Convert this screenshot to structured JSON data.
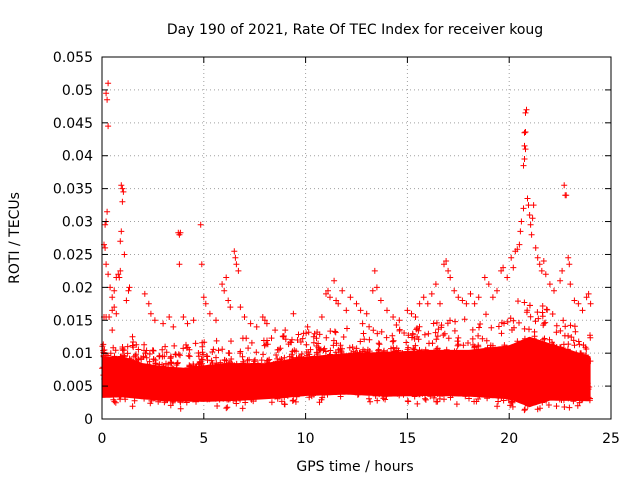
{
  "chart_data": {
    "type": "scatter",
    "title": "Day 190 of 2021, Rate Of TEC Index for receiver koug",
    "xlabel": "GPS time / hours",
    "ylabel": "ROTI / TECUs",
    "xlim": [
      0,
      25
    ],
    "ylim": [
      0,
      0.055
    ],
    "xticks": [
      0,
      5,
      10,
      15,
      20,
      25
    ],
    "xtick_labels": [
      "0",
      "5",
      "10",
      "15",
      "20",
      "25"
    ],
    "yticks": [
      0,
      0.005,
      0.01,
      0.015,
      0.02,
      0.025,
      0.03,
      0.035,
      0.04,
      0.045,
      0.05,
      0.055
    ],
    "ytick_labels": [
      "0",
      "0.005",
      "0.01",
      "0.015",
      "0.02",
      "0.025",
      "0.03",
      "0.035",
      "0.04",
      "0.045",
      "0.05",
      "0.055"
    ],
    "grid": true,
    "marker": "+",
    "color": "#ff0000",
    "series": [
      {
        "name": "ROTI",
        "points": [
          [
            0.2,
            0.0495
          ],
          [
            0.25,
            0.0485
          ],
          [
            0.3,
            0.051
          ],
          [
            0.3,
            0.0445
          ],
          [
            0.15,
            0.0295
          ],
          [
            0.2,
            0.03
          ],
          [
            0.25,
            0.0315
          ],
          [
            0.1,
            0.0265
          ],
          [
            0.15,
            0.026
          ],
          [
            0.2,
            0.0235
          ],
          [
            0.3,
            0.022
          ],
          [
            0.4,
            0.02
          ],
          [
            0.5,
            0.0185
          ],
          [
            0.6,
            0.0195
          ],
          [
            0.7,
            0.0215
          ],
          [
            0.8,
            0.022
          ],
          [
            0.9,
            0.0225
          ],
          [
            0.85,
            0.0215
          ],
          [
            0.95,
            0.0355
          ],
          [
            1.0,
            0.035
          ],
          [
            1.05,
            0.0345
          ],
          [
            1.0,
            0.033
          ],
          [
            0.95,
            0.0285
          ],
          [
            0.9,
            0.027
          ],
          [
            1.1,
            0.025
          ],
          [
            0.5,
            0.0165
          ],
          [
            0.7,
            0.016
          ],
          [
            1.2,
            0.018
          ],
          [
            1.3,
            0.0195
          ],
          [
            1.35,
            0.02
          ],
          [
            0.1,
            0.0155
          ],
          [
            0.2,
            0.0155
          ],
          [
            0.35,
            0.0155
          ],
          [
            0.6,
            0.017
          ],
          [
            2.1,
            0.019
          ],
          [
            2.3,
            0.0175
          ],
          [
            2.4,
            0.016
          ],
          [
            2.6,
            0.015
          ],
          [
            3.0,
            0.0145
          ],
          [
            3.3,
            0.0155
          ],
          [
            3.5,
            0.014
          ],
          [
            3.75,
            0.0283
          ],
          [
            3.8,
            0.028
          ],
          [
            3.85,
            0.0283
          ],
          [
            3.8,
            0.0235
          ],
          [
            4.0,
            0.0155
          ],
          [
            4.2,
            0.0145
          ],
          [
            4.5,
            0.015
          ],
          [
            4.85,
            0.0295
          ],
          [
            4.9,
            0.0235
          ],
          [
            5.0,
            0.0185
          ],
          [
            5.1,
            0.0175
          ],
          [
            5.3,
            0.016
          ],
          [
            5.6,
            0.015
          ],
          [
            5.9,
            0.0205
          ],
          [
            6.0,
            0.0195
          ],
          [
            6.1,
            0.0215
          ],
          [
            6.2,
            0.018
          ],
          [
            6.3,
            0.017
          ],
          [
            6.5,
            0.0255
          ],
          [
            6.55,
            0.0245
          ],
          [
            6.6,
            0.0235
          ],
          [
            6.7,
            0.0225
          ],
          [
            6.8,
            0.017
          ],
          [
            7.0,
            0.0155
          ],
          [
            7.3,
            0.0145
          ],
          [
            7.6,
            0.014
          ],
          [
            7.9,
            0.0155
          ],
          [
            8.0,
            0.015
          ],
          [
            8.1,
            0.0145
          ],
          [
            8.5,
            0.0135
          ],
          [
            8.9,
            0.0125
          ],
          [
            9.4,
            0.016
          ],
          [
            9.6,
            0.012
          ],
          [
            10.1,
            0.014
          ],
          [
            10.4,
            0.0125
          ],
          [
            10.8,
            0.0155
          ],
          [
            11.0,
            0.019
          ],
          [
            11.1,
            0.0195
          ],
          [
            11.2,
            0.0185
          ],
          [
            11.4,
            0.021
          ],
          [
            11.5,
            0.018
          ],
          [
            11.6,
            0.0175
          ],
          [
            11.8,
            0.0195
          ],
          [
            12.0,
            0.0165
          ],
          [
            12.2,
            0.0185
          ],
          [
            12.5,
            0.0175
          ],
          [
            12.7,
            0.0165
          ],
          [
            13.0,
            0.016
          ],
          [
            13.3,
            0.0195
          ],
          [
            13.4,
            0.0225
          ],
          [
            13.5,
            0.02
          ],
          [
            13.7,
            0.018
          ],
          [
            14.0,
            0.0165
          ],
          [
            14.3,
            0.0155
          ],
          [
            14.6,
            0.015
          ],
          [
            15.0,
            0.0165
          ],
          [
            15.2,
            0.016
          ],
          [
            15.4,
            0.0155
          ],
          [
            15.6,
            0.0175
          ],
          [
            15.8,
            0.0185
          ],
          [
            16.0,
            0.0175
          ],
          [
            16.2,
            0.019
          ],
          [
            16.4,
            0.0205
          ],
          [
            16.6,
            0.0175
          ],
          [
            16.8,
            0.0235
          ],
          [
            16.9,
            0.024
          ],
          [
            17.0,
            0.0225
          ],
          [
            17.1,
            0.0215
          ],
          [
            17.3,
            0.0195
          ],
          [
            17.5,
            0.0185
          ],
          [
            17.7,
            0.018
          ],
          [
            17.9,
            0.0175
          ],
          [
            18.1,
            0.019
          ],
          [
            18.3,
            0.0175
          ],
          [
            18.5,
            0.0185
          ],
          [
            18.8,
            0.0215
          ],
          [
            19.0,
            0.0205
          ],
          [
            19.2,
            0.0185
          ],
          [
            19.4,
            0.0195
          ],
          [
            19.6,
            0.0225
          ],
          [
            19.7,
            0.023
          ],
          [
            19.9,
            0.0215
          ],
          [
            20.1,
            0.0245
          ],
          [
            20.2,
            0.023
          ],
          [
            20.3,
            0.0255
          ],
          [
            20.4,
            0.0258
          ],
          [
            20.5,
            0.0265
          ],
          [
            20.55,
            0.0285
          ],
          [
            20.6,
            0.03
          ],
          [
            20.7,
            0.032
          ],
          [
            20.7,
            0.0385
          ],
          [
            20.75,
            0.0395
          ],
          [
            20.75,
            0.0415
          ],
          [
            20.8,
            0.041
          ],
          [
            20.75,
            0.0435
          ],
          [
            20.8,
            0.0436
          ],
          [
            20.8,
            0.0465
          ],
          [
            20.85,
            0.047
          ],
          [
            20.9,
            0.0335
          ],
          [
            20.95,
            0.0325
          ],
          [
            21.0,
            0.031
          ],
          [
            21.05,
            0.0295
          ],
          [
            21.1,
            0.028
          ],
          [
            21.15,
            0.0305
          ],
          [
            21.2,
            0.0325
          ],
          [
            21.3,
            0.026
          ],
          [
            21.4,
            0.0245
          ],
          [
            21.5,
            0.0235
          ],
          [
            21.6,
            0.0225
          ],
          [
            21.7,
            0.024
          ],
          [
            21.8,
            0.022
          ],
          [
            22.0,
            0.0205
          ],
          [
            22.2,
            0.0195
          ],
          [
            22.5,
            0.021
          ],
          [
            22.6,
            0.0225
          ],
          [
            22.7,
            0.0355
          ],
          [
            22.75,
            0.034
          ],
          [
            22.8,
            0.034
          ],
          [
            22.9,
            0.0245
          ],
          [
            22.95,
            0.0235
          ],
          [
            23.0,
            0.0205
          ],
          [
            23.2,
            0.018
          ],
          [
            23.4,
            0.0175
          ],
          [
            23.6,
            0.0165
          ],
          [
            23.8,
            0.0185
          ],
          [
            23.9,
            0.019
          ],
          [
            24.0,
            0.0175
          ],
          [
            0.5,
            0.0135
          ],
          [
            1.5,
            0.0125
          ],
          [
            9.0,
            0.0135
          ],
          [
            9.9,
            0.013
          ],
          [
            12.8,
            0.0145
          ]
        ]
      }
    ],
    "band": {
      "x_range": [
        0,
        24
      ],
      "base_low": [
        [
          0,
          0.0032
        ],
        [
          1,
          0.0033
        ],
        [
          3,
          0.0027
        ],
        [
          5,
          0.0026
        ],
        [
          7,
          0.0028
        ],
        [
          9,
          0.0032
        ],
        [
          10,
          0.0035
        ],
        [
          12,
          0.0037
        ],
        [
          14,
          0.0034
        ],
        [
          16,
          0.0035
        ],
        [
          18,
          0.0034
        ],
        [
          20,
          0.003
        ],
        [
          21,
          0.0018
        ],
        [
          22,
          0.0028
        ],
        [
          24,
          0.0027
        ]
      ],
      "base_high": [
        [
          0,
          0.0095
        ],
        [
          1,
          0.0095
        ],
        [
          2,
          0.0085
        ],
        [
          3,
          0.008
        ],
        [
          4,
          0.0078
        ],
        [
          6,
          0.0085
        ],
        [
          8,
          0.0085
        ],
        [
          10,
          0.0095
        ],
        [
          12,
          0.01
        ],
        [
          14,
          0.0102
        ],
        [
          16,
          0.0105
        ],
        [
          18,
          0.0105
        ],
        [
          20,
          0.0112
        ],
        [
          21,
          0.0125
        ],
        [
          22,
          0.0115
        ],
        [
          23,
          0.0105
        ],
        [
          24,
          0.0095
        ]
      ],
      "spike_high": [
        [
          0,
          0.0125
        ],
        [
          2,
          0.0115
        ],
        [
          4,
          0.0112
        ],
        [
          6,
          0.0122
        ],
        [
          8,
          0.0125
        ],
        [
          10,
          0.0132
        ],
        [
          12,
          0.014
        ],
        [
          14,
          0.0142
        ],
        [
          16,
          0.0148
        ],
        [
          18,
          0.0152
        ],
        [
          20,
          0.0175
        ],
        [
          21,
          0.019
        ],
        [
          22,
          0.0165
        ],
        [
          23,
          0.0145
        ],
        [
          24,
          0.0135
        ]
      ]
    }
  }
}
